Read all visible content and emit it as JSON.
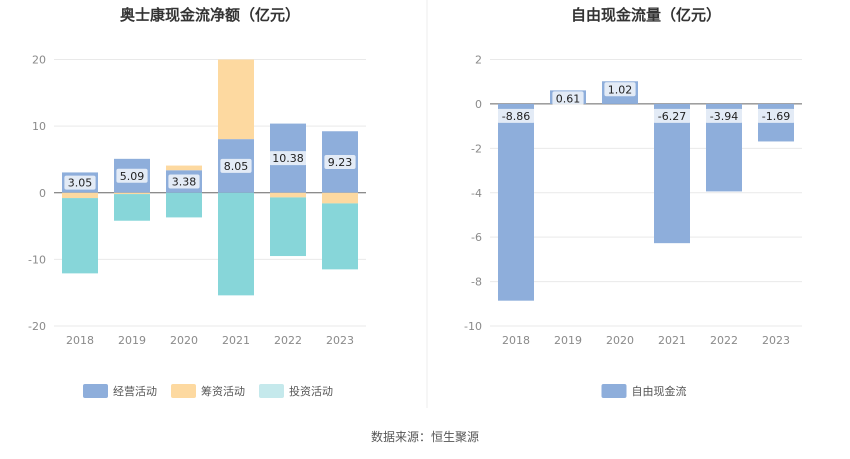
{
  "chart_data": [
    {
      "type": "bar",
      "stacked": true,
      "title": "奥士康现金流净额（亿元）",
      "categories": [
        "2018",
        "2019",
        "2020",
        "2021",
        "2022",
        "2023"
      ],
      "ylim": [
        -20,
        20
      ],
      "yticks": [
        "20",
        "10",
        "0",
        "-10",
        "-20"
      ],
      "grid": true,
      "legend": "bottom",
      "series": [
        {
          "name": "经营活动",
          "color": "#8eaedb",
          "values": [
            3.05,
            5.09,
            3.38,
            8.05,
            10.38,
            9.23
          ],
          "labels": [
            "3.05",
            "5.09",
            "3.38",
            "8.05",
            "10.38",
            "9.23"
          ]
        },
        {
          "name": "筹资活动",
          "color": "#fdd9a0",
          "values": [
            -0.8,
            -0.2,
            0.7,
            11.95,
            -0.7,
            -1.6
          ]
        },
        {
          "name": "投资活动",
          "color": "#87d6d9",
          "legend_color": "#c5e9ec",
          "values": [
            -11.3,
            -4.0,
            -3.7,
            -15.4,
            -8.8,
            -9.9
          ]
        }
      ]
    },
    {
      "type": "bar",
      "title": "自由现金流量（亿元）",
      "categories": [
        "2018",
        "2019",
        "2020",
        "2021",
        "2022",
        "2023"
      ],
      "ylim": [
        -10,
        2
      ],
      "yticks": [
        "2",
        "0",
        "-2",
        "-4",
        "-6",
        "-8",
        "-10"
      ],
      "grid": true,
      "legend": "bottom",
      "series": [
        {
          "name": "自由现金流",
          "color": "#8eaedb",
          "values": [
            -8.86,
            0.61,
            1.02,
            -6.27,
            -3.94,
            -1.69
          ],
          "labels": [
            "-8.86",
            "0.61",
            "1.02",
            "-6.27",
            "-3.94",
            "-1.69"
          ]
        }
      ]
    }
  ],
  "source_text": "数据来源：恒生聚源"
}
